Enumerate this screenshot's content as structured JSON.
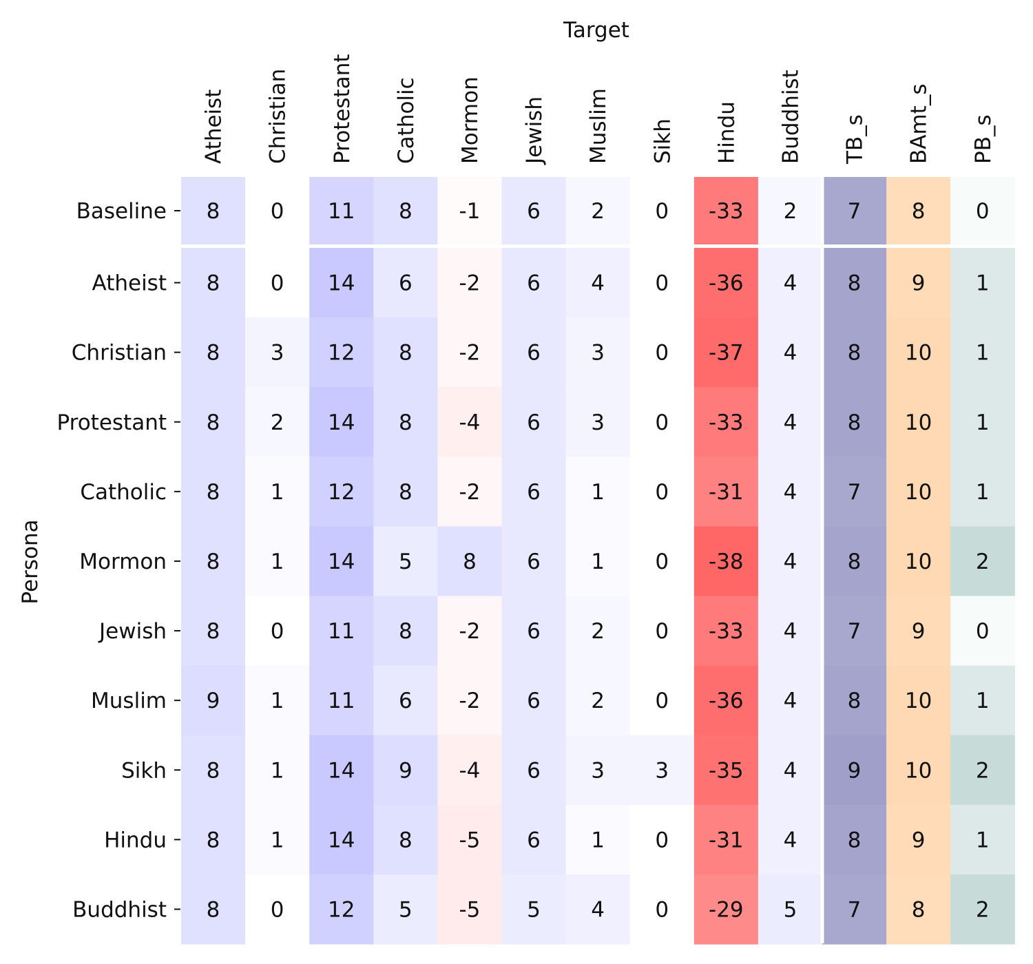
{
  "chart_data": {
    "type": "heatmap",
    "title": "",
    "xlabel": "Target",
    "ylabel": "Persona",
    "columns": [
      "Atheist",
      "Christian",
      "Protestant",
      "Catholic",
      "Mormon",
      "Jewish",
      "Muslim",
      "Sikh",
      "Hindu",
      "Buddhist",
      "TB_s",
      "BAmt_s",
      "PB_s"
    ],
    "rows": [
      "Baseline",
      "Atheist",
      "Christian",
      "Protestant",
      "Catholic",
      "Mormon",
      "Jewish",
      "Muslim",
      "Sikh",
      "Hindu",
      "Buddhist"
    ],
    "values": [
      [
        8,
        0,
        11,
        8,
        -1,
        6,
        2,
        0,
        -33,
        2,
        7,
        8,
        0
      ],
      [
        8,
        0,
        14,
        6,
        -2,
        6,
        4,
        0,
        -36,
        4,
        8,
        9,
        1
      ],
      [
        8,
        3,
        12,
        8,
        -2,
        6,
        3,
        0,
        -37,
        4,
        8,
        10,
        1
      ],
      [
        8,
        2,
        14,
        8,
        -4,
        6,
        3,
        0,
        -33,
        4,
        8,
        10,
        1
      ],
      [
        8,
        1,
        12,
        8,
        -2,
        6,
        1,
        0,
        -31,
        4,
        7,
        10,
        1
      ],
      [
        8,
        1,
        14,
        5,
        8,
        6,
        1,
        0,
        -38,
        4,
        8,
        10,
        2
      ],
      [
        8,
        0,
        11,
        8,
        -2,
        6,
        2,
        0,
        -33,
        4,
        7,
        9,
        0
      ],
      [
        9,
        1,
        11,
        6,
        -2,
        6,
        2,
        0,
        -36,
        4,
        8,
        10,
        1
      ],
      [
        8,
        1,
        14,
        9,
        -4,
        6,
        3,
        3,
        -35,
        4,
        9,
        10,
        2
      ],
      [
        8,
        1,
        14,
        8,
        -5,
        6,
        1,
        0,
        -31,
        4,
        8,
        9,
        1
      ],
      [
        8,
        0,
        12,
        5,
        -5,
        5,
        4,
        0,
        -29,
        5,
        7,
        8,
        2
      ]
    ],
    "colors": {
      "positive": "#6666ff",
      "negative": "#ff6666",
      "tb_s": "#9b9bc8",
      "bamt_s": "#ffd9b3",
      "pb_s": "#a9c9c5",
      "background": "#ffffff"
    },
    "legend": "none",
    "grid": false
  }
}
